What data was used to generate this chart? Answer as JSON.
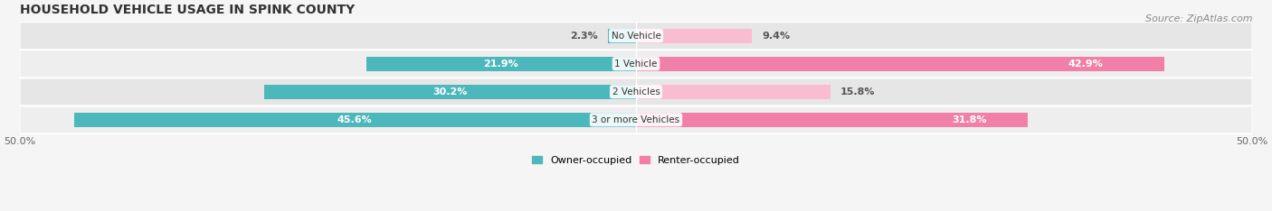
{
  "title": "HOUSEHOLD VEHICLE USAGE IN SPINK COUNTY",
  "source": "Source: ZipAtlas.com",
  "categories": [
    "No Vehicle",
    "1 Vehicle",
    "2 Vehicles",
    "3 or more Vehicles"
  ],
  "owner_values": [
    2.3,
    21.9,
    30.2,
    45.6
  ],
  "renter_values": [
    9.4,
    42.9,
    15.8,
    31.8
  ],
  "owner_color": "#4db8bc",
  "renter_color": "#f080a8",
  "renter_color_light": "#f9bcd0",
  "row_bg_light": "#f0f0f0",
  "row_bg_dark": "#e4e4e4",
  "xlim": [
    -50,
    50
  ],
  "title_fontsize": 10,
  "source_fontsize": 8,
  "label_fontsize": 8,
  "category_fontsize": 7.5,
  "legend_fontsize": 8,
  "bar_height": 0.52,
  "fig_bg": "#f5f5f5"
}
